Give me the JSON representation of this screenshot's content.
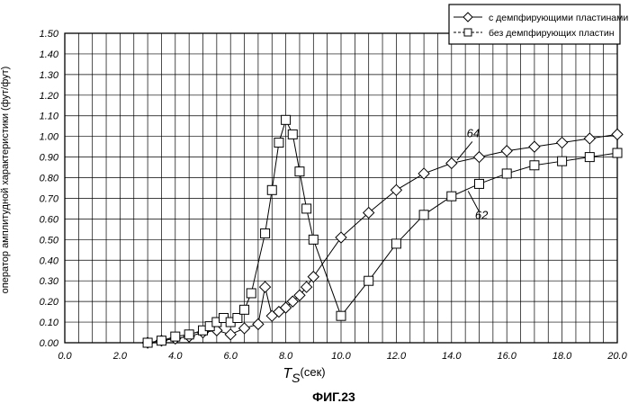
{
  "figure_label": "ФИГ.23",
  "chart_data": {
    "type": "line",
    "ylabel": "оператор амплитудной характеристики (фут/фут)",
    "xlabel_main": "T",
    "xlabel_sub": "S",
    "xlabel_unit": "(сек)",
    "xlim": [
      0,
      20
    ],
    "ylim": [
      0,
      1.5
    ],
    "grid": true,
    "legend_position": "top-right",
    "x_ticks": [
      "0.0",
      "2.0",
      "4.0",
      "6.0",
      "8.0",
      "10.0",
      "12.0",
      "14.0",
      "16.0",
      "18.0",
      "20.0"
    ],
    "y_ticks": [
      "0.00",
      "0.10",
      "0.20",
      "0.30",
      "0.40",
      "0.50",
      "0.60",
      "0.70",
      "0.80",
      "0.90",
      "1.00",
      "1.10",
      "1.20",
      "1.30",
      "1.40",
      "1.50"
    ],
    "series": [
      {
        "name": "с демпфирующими пластинами",
        "marker": "diamond",
        "label": "64",
        "x": [
          3.0,
          3.5,
          4.0,
          4.5,
          5.0,
          5.5,
          6.0,
          6.5,
          7.0,
          7.25,
          7.5,
          7.75,
          8.0,
          8.25,
          8.5,
          8.75,
          9.0,
          10.0,
          11.0,
          12.0,
          13.0,
          14.0,
          15.0,
          16.0,
          17.0,
          18.0,
          19.0,
          20.0
        ],
        "y": [
          0.0,
          0.01,
          0.02,
          0.03,
          0.05,
          0.06,
          0.04,
          0.07,
          0.09,
          0.27,
          0.13,
          0.15,
          0.17,
          0.2,
          0.23,
          0.27,
          0.32,
          0.51,
          0.63,
          0.74,
          0.82,
          0.87,
          0.9,
          0.93,
          0.95,
          0.97,
          0.99,
          1.01
        ]
      },
      {
        "name": "без демпфирующих пластин",
        "marker": "square",
        "label": "62",
        "x": [
          3.0,
          3.5,
          4.0,
          4.5,
          5.0,
          5.25,
          5.5,
          5.75,
          6.0,
          6.25,
          6.5,
          6.75,
          7.25,
          7.5,
          7.75,
          8.0,
          8.25,
          8.5,
          8.75,
          9.0,
          10.0,
          11.0,
          12.0,
          13.0,
          14.0,
          15.0,
          16.0,
          17.0,
          18.0,
          19.0,
          20.0
        ],
        "y": [
          0.0,
          0.01,
          0.03,
          0.04,
          0.06,
          0.08,
          0.1,
          0.12,
          0.1,
          0.12,
          0.16,
          0.24,
          0.53,
          0.74,
          0.97,
          1.08,
          1.01,
          0.83,
          0.65,
          0.5,
          0.13,
          0.3,
          0.48,
          0.62,
          0.71,
          0.77,
          0.82,
          0.86,
          0.88,
          0.9,
          0.92
        ]
      }
    ]
  }
}
